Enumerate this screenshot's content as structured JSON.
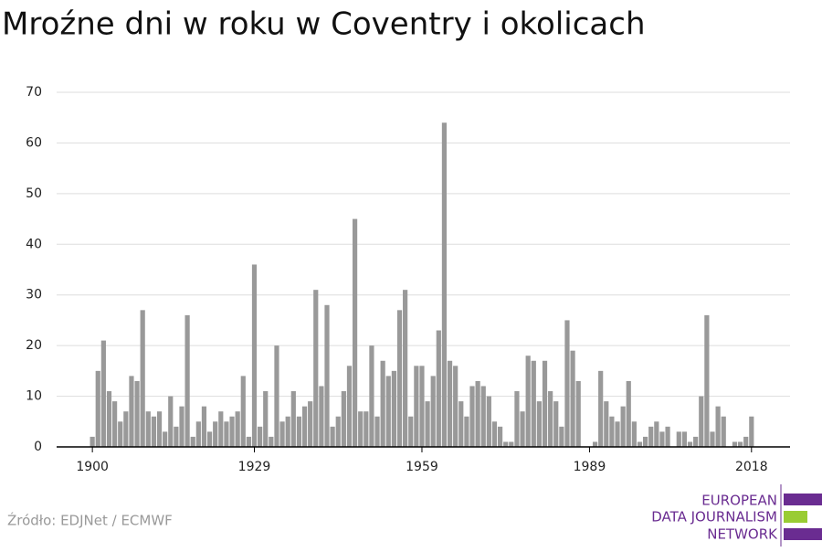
{
  "chart_data": {
    "type": "bar",
    "title": "Mroźne dni w roku w Coventry i okolicach",
    "x": [
      1900,
      1901,
      1902,
      1903,
      1904,
      1905,
      1906,
      1907,
      1908,
      1909,
      1910,
      1911,
      1912,
      1913,
      1914,
      1915,
      1916,
      1917,
      1918,
      1919,
      1920,
      1921,
      1922,
      1923,
      1924,
      1925,
      1926,
      1927,
      1928,
      1929,
      1930,
      1931,
      1932,
      1933,
      1934,
      1935,
      1936,
      1937,
      1938,
      1939,
      1940,
      1941,
      1942,
      1943,
      1944,
      1945,
      1946,
      1947,
      1948,
      1949,
      1950,
      1951,
      1952,
      1953,
      1954,
      1955,
      1956,
      1957,
      1958,
      1959,
      1960,
      1961,
      1962,
      1963,
      1964,
      1965,
      1966,
      1967,
      1968,
      1969,
      1970,
      1971,
      1972,
      1973,
      1974,
      1975,
      1976,
      1977,
      1978,
      1979,
      1980,
      1981,
      1982,
      1983,
      1984,
      1985,
      1986,
      1987,
      1988,
      1989,
      1990,
      1991,
      1992,
      1993,
      1994,
      1995,
      1996,
      1997,
      1998,
      1999,
      2000,
      2001,
      2002,
      2003,
      2004,
      2005,
      2006,
      2007,
      2008,
      2009,
      2010,
      2011,
      2012,
      2013,
      2014,
      2015,
      2016,
      2017,
      2018
    ],
    "values": [
      2,
      15,
      21,
      11,
      9,
      5,
      7,
      14,
      13,
      27,
      7,
      6,
      7,
      3,
      10,
      4,
      8,
      26,
      2,
      5,
      8,
      3,
      5,
      7,
      5,
      6,
      7,
      14,
      2,
      36,
      4,
      11,
      2,
      20,
      5,
      6,
      11,
      6,
      8,
      9,
      31,
      12,
      28,
      4,
      6,
      11,
      16,
      45,
      7,
      7,
      20,
      6,
      17,
      14,
      15,
      27,
      31,
      6,
      16,
      16,
      9,
      14,
      23,
      64,
      17,
      16,
      9,
      6,
      12,
      13,
      12,
      10,
      5,
      4,
      1,
      1,
      11,
      7,
      18,
      17,
      9,
      17,
      11,
      9,
      4,
      25,
      19,
      13,
      0,
      0,
      1,
      15,
      9,
      6,
      5,
      8,
      13,
      5,
      1,
      2,
      4,
      5,
      3,
      4,
      0,
      3,
      3,
      1,
      2,
      10,
      26,
      3,
      8,
      6,
      0,
      1,
      1,
      2,
      6
    ],
    "color": "#999999",
    "xlim": [
      1893.6,
      2024.9
    ],
    "xticks": [
      1900,
      1929,
      1959,
      1989,
      2018
    ],
    "ylim": [
      0,
      70
    ],
    "yticks": [
      0,
      10,
      20,
      30,
      40,
      50,
      60,
      70
    ],
    "grid": true,
    "source": "Źródło: EDJNet / ECMWF"
  },
  "logo": {
    "lines": [
      "EUROPEAN",
      "DATA JOURNALISM",
      "NETWORK"
    ]
  }
}
